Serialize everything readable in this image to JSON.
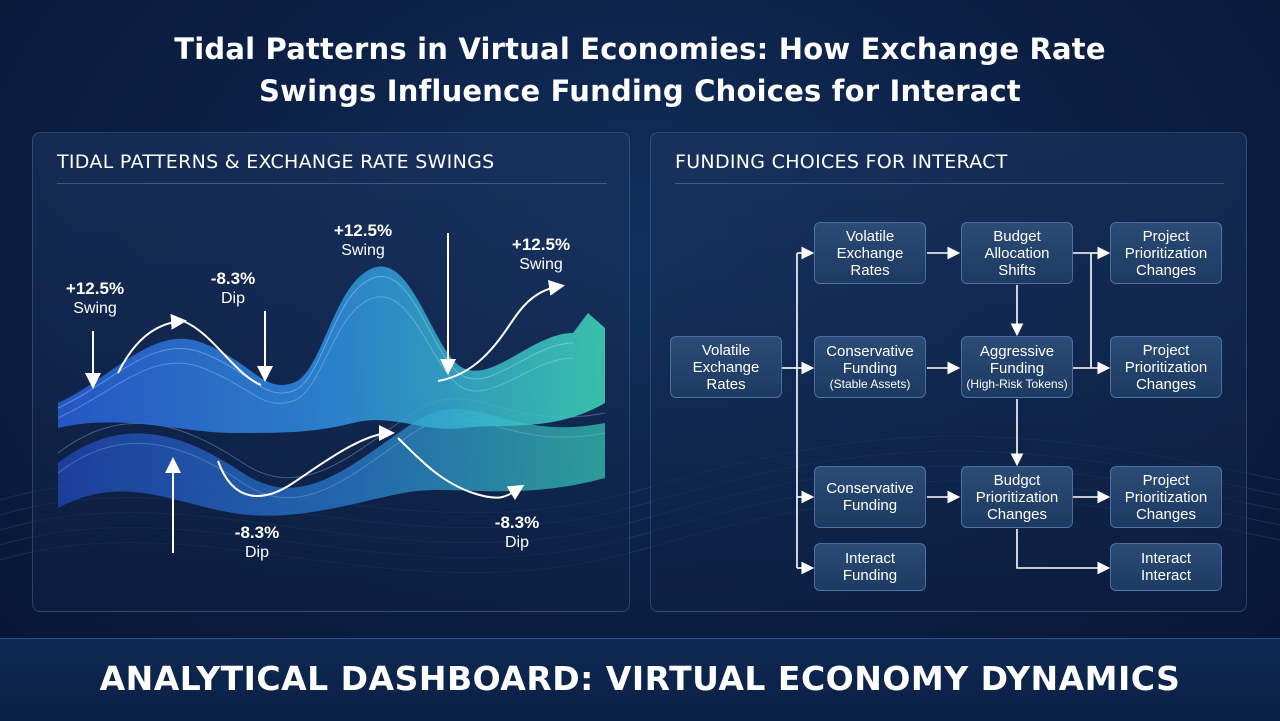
{
  "title_lines": [
    "Tidal Patterns in Virtual Economies: How Exchange Rate",
    "Swings Influence Funding Choices for Interact"
  ],
  "left_panel": {
    "title": "TIDAL PATTERNS & EXCHANGE RATE SWINGS",
    "annotations": [
      {
        "value": "+12.5%",
        "label": "Swing"
      },
      {
        "value": "-8.3%",
        "label": "Dip"
      },
      {
        "value": "+12.5%",
        "label": "Swing"
      },
      {
        "value": "+12.5%",
        "label": "Swing"
      },
      {
        "value": "-8.3%",
        "label": "Dip"
      },
      {
        "value": "-8.3%",
        "label": "Dip"
      }
    ]
  },
  "right_panel": {
    "title": "FUNDING CHOICES FOR INTERACT",
    "nodes": {
      "source": {
        "lines": [
          "Volatile",
          "Exchange",
          "Rates"
        ]
      },
      "volatile": {
        "lines": [
          "Volatile",
          "Exchange",
          "Rates"
        ]
      },
      "conservative_stable": {
        "lines": [
          "Conservative",
          "Funding"
        ],
        "sub": "(Stable Assets)"
      },
      "conservative": {
        "lines": [
          "Conservative",
          "Funding"
        ]
      },
      "interact_funding": {
        "lines": [
          "Interact",
          "Funding"
        ]
      },
      "budget_allocation": {
        "lines": [
          "Budget",
          "Allocation",
          "Shifts"
        ]
      },
      "aggressive": {
        "lines": [
          "Aggressive",
          "Funding"
        ],
        "sub": "(High-Risk Tokens)"
      },
      "budget_prioritization": {
        "lines": [
          "Budgct",
          "Prioritization",
          "Changes"
        ]
      },
      "project1": {
        "lines": [
          "Project",
          "Prioritization",
          "Changes"
        ]
      },
      "project2": {
        "lines": [
          "Project",
          "Prioritization",
          "Changes"
        ]
      },
      "project3": {
        "lines": [
          "Project",
          "Prioritization",
          "Changes"
        ]
      },
      "interact_interact": {
        "lines": [
          "Interact",
          "Interact"
        ]
      }
    }
  },
  "footer": "ANALYTICAL DASHBOARD: VIRTUAL ECONOMY DYNAMICS",
  "colors": {
    "background": "#0c2147",
    "wave_blue": "#2f6fe0",
    "wave_teal": "#3fd9b8",
    "node_fill": "#24436b",
    "arrow": "#ffffff"
  }
}
